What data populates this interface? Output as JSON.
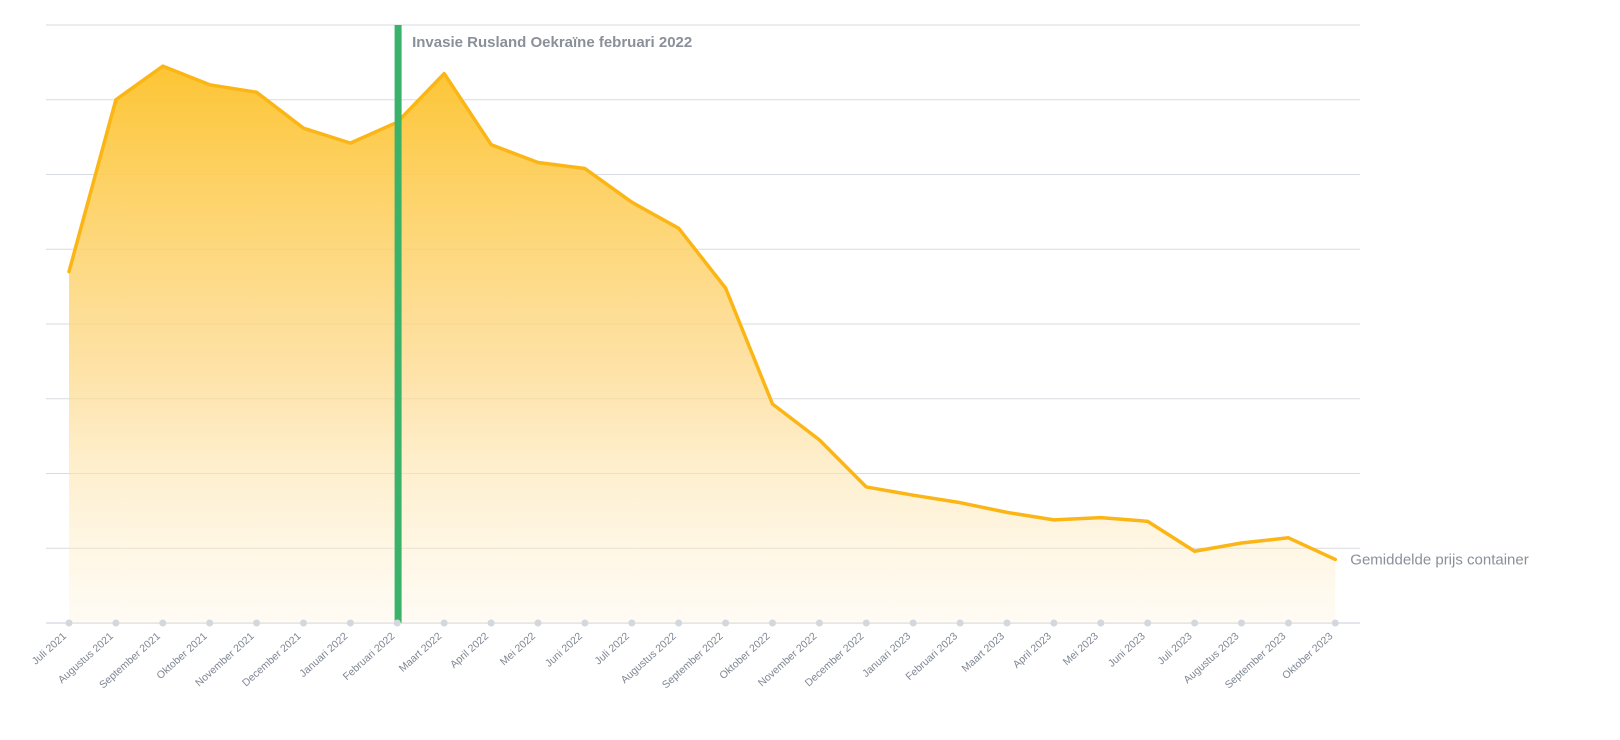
{
  "chart_data": {
    "type": "area",
    "title": "",
    "xlabel": "",
    "ylabel": "",
    "ylim": [
      0,
      8
    ],
    "grid": true,
    "categories": [
      "Juli 2021",
      "Augustus 2021",
      "September 2021",
      "Oktober 2021",
      "November 2021",
      "December 2021",
      "Januari 2022",
      "Februari 2022",
      "Maart 2022",
      "April 2022",
      "Mei 2022",
      "Juni 2022",
      "Juli 2022",
      "Augustus 2022",
      "September 2022",
      "Oktober 2022",
      "November 2022",
      "December 2022",
      "Januari 2023",
      "Februari 2023",
      "Maart 2023",
      "April 2023",
      "Mei 2023",
      "Juni 2023",
      "Juli 2023",
      "Augustus 2023",
      "September 2023",
      "Oktober 2023"
    ],
    "series": [
      {
        "name": "Gemiddelde prijs container",
        "color": "#fbb616",
        "values": [
          4.7,
          7.0,
          7.45,
          7.2,
          7.1,
          6.62,
          6.42,
          6.7,
          7.35,
          6.4,
          6.16,
          6.08,
          5.63,
          5.28,
          4.48,
          2.93,
          2.45,
          1.82,
          1.71,
          1.61,
          1.48,
          1.38,
          1.41,
          1.36,
          0.96,
          1.07,
          1.14,
          0.85
        ]
      }
    ],
    "annotations": [
      {
        "category": "Februari 2022",
        "text": "Invasie Rusland Oekraïne februari 2022",
        "color": "#3ab26a"
      }
    ]
  }
}
